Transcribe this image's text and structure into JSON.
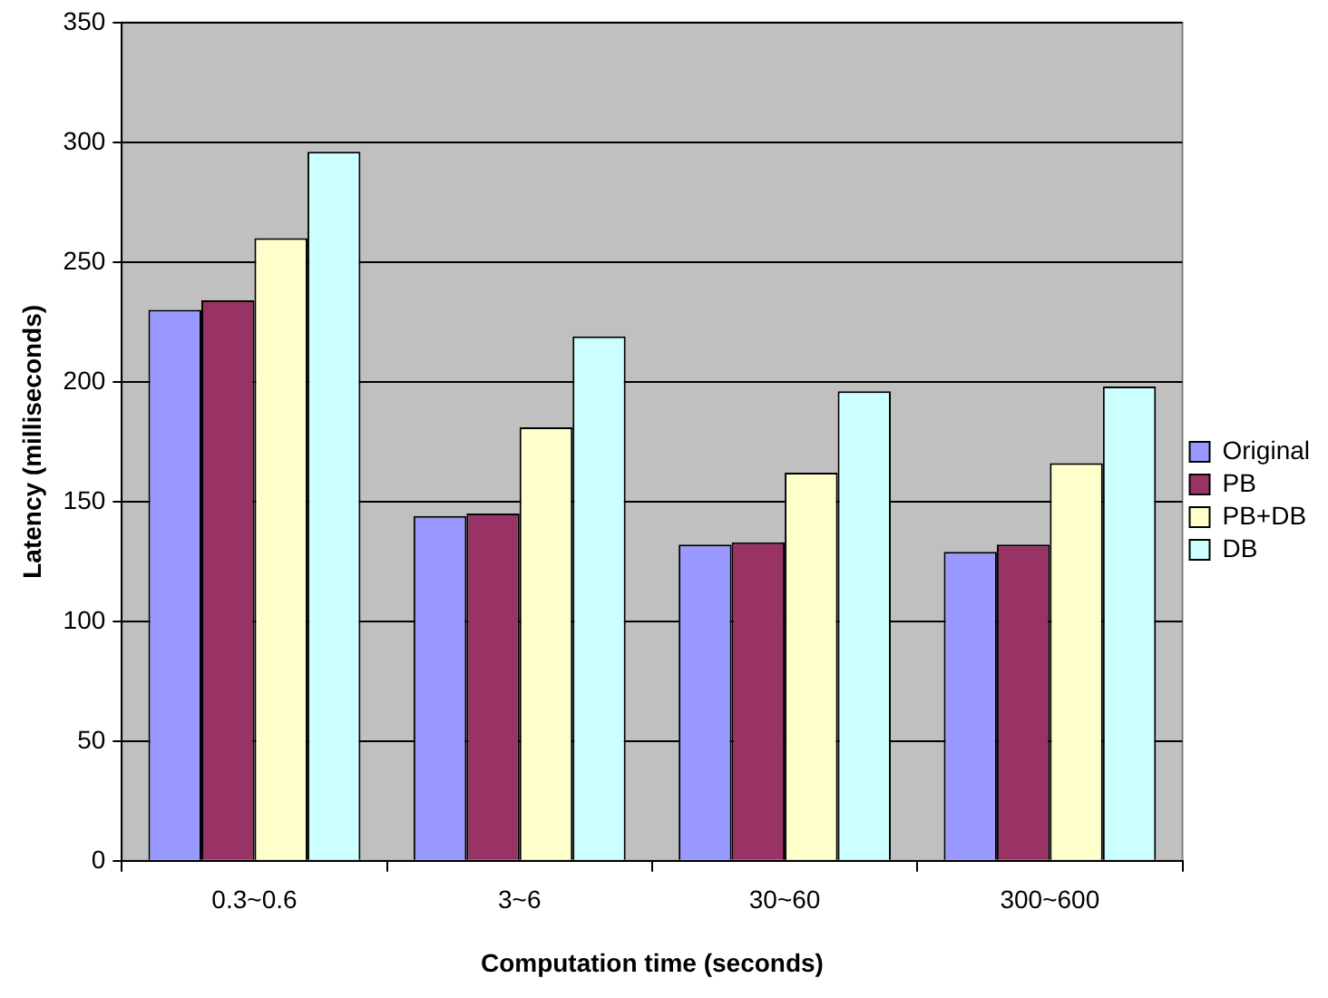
{
  "chart_data": {
    "type": "bar",
    "xlabel": "Computation time (seconds)",
    "ylabel": "Latency (milliseconds)",
    "categories": [
      "0.3~0.6",
      "3~6",
      "30~60",
      "300~600"
    ],
    "series": [
      {
        "name": "Original",
        "color": "#9999ff",
        "values": [
          230,
          144,
          132,
          129
        ]
      },
      {
        "name": "PB",
        "color": "#993366",
        "values": [
          234,
          145,
          133,
          132
        ]
      },
      {
        "name": "PB+DB",
        "color": "#ffffcc",
        "values": [
          260,
          181,
          162,
          166
        ]
      },
      {
        "name": "DB",
        "color": "#ccffff",
        "values": [
          296,
          219,
          196,
          198
        ]
      }
    ],
    "ylim": [
      0,
      350
    ],
    "yticks": [
      0,
      50,
      100,
      150,
      200,
      250,
      300,
      350
    ],
    "grid": "y",
    "legend": "right"
  }
}
